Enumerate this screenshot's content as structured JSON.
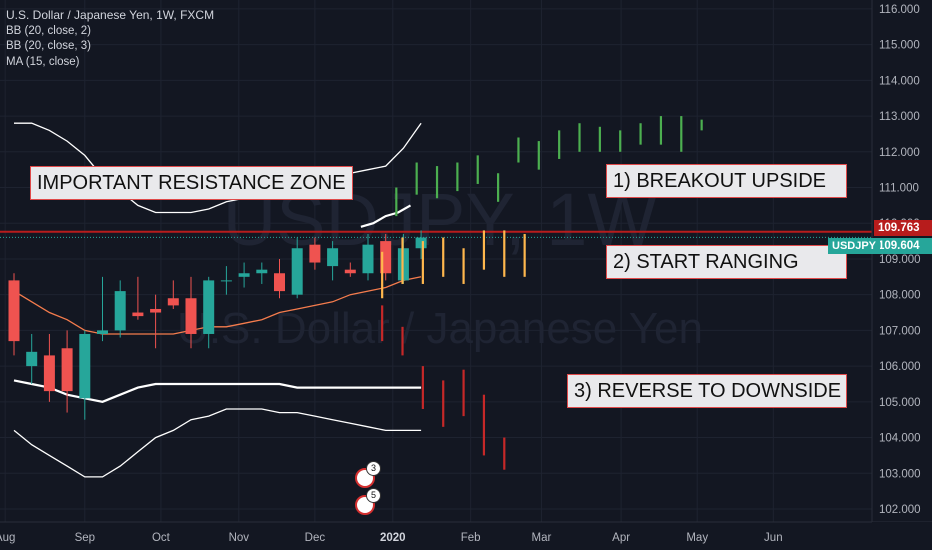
{
  "legend": {
    "title": "U.S. Dollar / Japanese Yen, 1W, FXCM",
    "indicators": [
      "BB (20, close, 2)",
      "BB (20, close, 3)",
      "MA (15, close)"
    ]
  },
  "watermark": {
    "symbol": "USDJPY, 1W",
    "name": "U.S. Dollar / Japanese Yen"
  },
  "annotations": {
    "resistance": "IMPORTANT RESISTANCE ZONE",
    "scenario1": "1) BREAKOUT UPSIDE",
    "scenario2": "2) START RANGING",
    "scenario3": "3) REVERSE TO DOWNSIDE"
  },
  "price_tags": {
    "resistance_level": "109.763",
    "last_price": "109.604",
    "symbol": "USDJPY"
  },
  "event_markers": {
    "dividends_count": "3",
    "calendar_count": "5"
  },
  "colors": {
    "background": "#131722",
    "up": "#26a69a",
    "down": "#ef5350",
    "resistance": "#b71c1c",
    "ma": "#f57c4d",
    "bb": "#ffffff",
    "scenario_up": "#4caf50",
    "scenario_range": "#ffb74d",
    "scenario_down": "#c62828"
  },
  "chart_data": {
    "type": "candlestick",
    "y_ticks": [
      102,
      103,
      104,
      105,
      106,
      107,
      108,
      109,
      110,
      111,
      112,
      113,
      114,
      115,
      116
    ],
    "y_tick_labels": [
      "102.000",
      "103.000",
      "104.000",
      "105.000",
      "106.000",
      "107.000",
      "108.000",
      "109.000",
      "110.000",
      "111.000",
      "112.000",
      "113.000",
      "114.000",
      "115.000",
      "116.000"
    ],
    "ylim": [
      101.8,
      116.1
    ],
    "x_labels": [
      {
        "label": "Aug",
        "week": -0.5
      },
      {
        "label": "Sep",
        "week": 4
      },
      {
        "label": "Oct",
        "week": 8.3
      },
      {
        "label": "Nov",
        "week": 12.7
      },
      {
        "label": "Dec",
        "week": 17
      },
      {
        "label": "2020",
        "week": 21.4
      },
      {
        "label": "Feb",
        "week": 25.8
      },
      {
        "label": "Mar",
        "week": 29.8
      },
      {
        "label": "Apr",
        "week": 34.3
      },
      {
        "label": "May",
        "week": 38.6
      },
      {
        "label": "Jun",
        "week": 42.9
      }
    ],
    "x_range": [
      -0.5,
      45.0
    ],
    "candles": [
      {
        "o": 108.4,
        "h": 108.6,
        "l": 106.3,
        "c": 106.7
      },
      {
        "o": 106.0,
        "h": 106.9,
        "l": 105.5,
        "c": 106.4
      },
      {
        "o": 106.3,
        "h": 106.9,
        "l": 105.0,
        "c": 105.3
      },
      {
        "o": 106.5,
        "h": 107.0,
        "l": 104.7,
        "c": 105.3
      },
      {
        "o": 105.1,
        "h": 107.0,
        "l": 104.5,
        "c": 106.9
      },
      {
        "o": 106.9,
        "h": 108.5,
        "l": 106.7,
        "c": 107.0
      },
      {
        "o": 107.0,
        "h": 108.4,
        "l": 106.8,
        "c": 108.1
      },
      {
        "o": 107.5,
        "h": 108.5,
        "l": 107.3,
        "c": 107.4
      },
      {
        "o": 107.6,
        "h": 108.0,
        "l": 106.5,
        "c": 107.5
      },
      {
        "o": 107.9,
        "h": 108.4,
        "l": 107.6,
        "c": 107.7
      },
      {
        "o": 107.9,
        "h": 108.5,
        "l": 106.5,
        "c": 106.9
      },
      {
        "o": 106.9,
        "h": 108.5,
        "l": 106.5,
        "c": 108.4
      },
      {
        "o": 108.4,
        "h": 108.8,
        "l": 108.0,
        "c": 108.4
      },
      {
        "o": 108.5,
        "h": 108.9,
        "l": 108.2,
        "c": 108.6
      },
      {
        "o": 108.6,
        "h": 108.9,
        "l": 108.3,
        "c": 108.7
      },
      {
        "o": 108.6,
        "h": 109.0,
        "l": 107.9,
        "c": 108.1
      },
      {
        "o": 108.0,
        "h": 109.6,
        "l": 107.9,
        "c": 109.3
      },
      {
        "o": 109.4,
        "h": 109.6,
        "l": 108.7,
        "c": 108.9
      },
      {
        "o": 108.8,
        "h": 109.5,
        "l": 108.4,
        "c": 109.3
      },
      {
        "o": 108.7,
        "h": 108.9,
        "l": 108.5,
        "c": 108.6
      },
      {
        "o": 108.6,
        "h": 109.7,
        "l": 108.4,
        "c": 109.4
      },
      {
        "o": 109.5,
        "h": 109.7,
        "l": 108.4,
        "c": 108.6
      },
      {
        "o": 108.4,
        "h": 109.7,
        "l": 108.3,
        "c": 109.3
      },
      {
        "o": 109.3,
        "h": 109.8,
        "l": 109.0,
        "c": 109.6
      }
    ],
    "bb2_upper": [
      null,
      null,
      null,
      null,
      null,
      null,
      null,
      null,
      null,
      null,
      null,
      null,
      null,
      null,
      null,
      null,
      null,
      null,
      null,
      null,
      null,
      null,
      111.3,
      111.6
    ],
    "bb2_lower": [
      105.6,
      105.5,
      105.4,
      105.2,
      105.1,
      105.0,
      105.2,
      105.4,
      105.5,
      105.5,
      105.5,
      105.5,
      105.5,
      105.5,
      105.5,
      105.5,
      105.4,
      105.4,
      105.4,
      105.4,
      105.4,
      105.4,
      105.4,
      105.4
    ],
    "bb3_upper": [
      112.8,
      112.8,
      112.6,
      112.3,
      111.9,
      111.3,
      110.9,
      110.5,
      110.3,
      110.3,
      110.3,
      110.4,
      110.6,
      110.7,
      110.8,
      110.9,
      111.0,
      111.2,
      111.3,
      111.4,
      111.5,
      111.6,
      112.1,
      112.8
    ],
    "bb3_lower": [
      104.2,
      103.8,
      103.5,
      103.2,
      102.9,
      102.9,
      103.2,
      103.6,
      104.0,
      104.2,
      104.5,
      104.6,
      104.8,
      104.8,
      104.8,
      104.7,
      104.7,
      104.6,
      104.5,
      104.4,
      104.3,
      104.2,
      104.2,
      104.2
    ],
    "ma": [
      108.1,
      107.8,
      107.5,
      107.3,
      107.0,
      106.9,
      106.9,
      106.9,
      106.9,
      106.9,
      107.0,
      107.1,
      107.1,
      107.2,
      107.3,
      107.5,
      107.6,
      107.7,
      107.8,
      108.0,
      108.1,
      108.2,
      108.4,
      108.5
    ],
    "bb_extra_lines": {
      "inner_upper": [
        109.9,
        110.0,
        110.2,
        110.3,
        110.5
      ],
      "inner_upper_weeks": [
        19.6,
        20.3,
        21.0,
        21.7,
        22.4
      ]
    },
    "resistance_level": 109.763,
    "last_price": 109.604,
    "scenarios": {
      "breakout": [
        {
          "hi": 111.0,
          "lo": 110.2
        },
        {
          "hi": 111.7,
          "lo": 110.8
        },
        {
          "hi": 111.6,
          "lo": 110.7
        },
        {
          "hi": 111.7,
          "lo": 110.9
        },
        {
          "hi": 111.9,
          "lo": 111.1
        },
        {
          "hi": 111.4,
          "lo": 110.6
        },
        {
          "hi": 112.4,
          "lo": 111.7
        },
        {
          "hi": 112.3,
          "lo": 111.5
        },
        {
          "hi": 112.6,
          "lo": 111.8
        },
        {
          "hi": 112.8,
          "lo": 112.0
        },
        {
          "hi": 112.7,
          "lo": 112.0
        },
        {
          "hi": 112.6,
          "lo": 112.0
        },
        {
          "hi": 112.8,
          "lo": 112.2
        },
        {
          "hi": 113.0,
          "lo": 112.2
        },
        {
          "hi": 113.0,
          "lo": 112.0
        },
        {
          "hi": 112.9,
          "lo": 112.6
        }
      ],
      "ranging": [
        {
          "hi": 109.2,
          "lo": 107.9
        },
        {
          "hi": 109.6,
          "lo": 108.3
        },
        {
          "hi": 109.5,
          "lo": 108.3
        },
        {
          "hi": 109.6,
          "lo": 108.5
        },
        {
          "hi": 109.3,
          "lo": 108.3
        },
        {
          "hi": 109.8,
          "lo": 108.7
        },
        {
          "hi": 109.8,
          "lo": 108.5
        },
        {
          "hi": 109.7,
          "lo": 108.5
        }
      ],
      "reverse": [
        {
          "hi": 107.7,
          "lo": 106.7
        },
        {
          "hi": 107.1,
          "lo": 106.3
        },
        {
          "hi": 106.0,
          "lo": 104.8
        },
        {
          "hi": 105.6,
          "lo": 104.3
        },
        {
          "hi": 105.9,
          "lo": 104.6
        },
        {
          "hi": 105.2,
          "lo": 103.5
        },
        {
          "hi": 104.0,
          "lo": 103.1
        }
      ]
    }
  }
}
